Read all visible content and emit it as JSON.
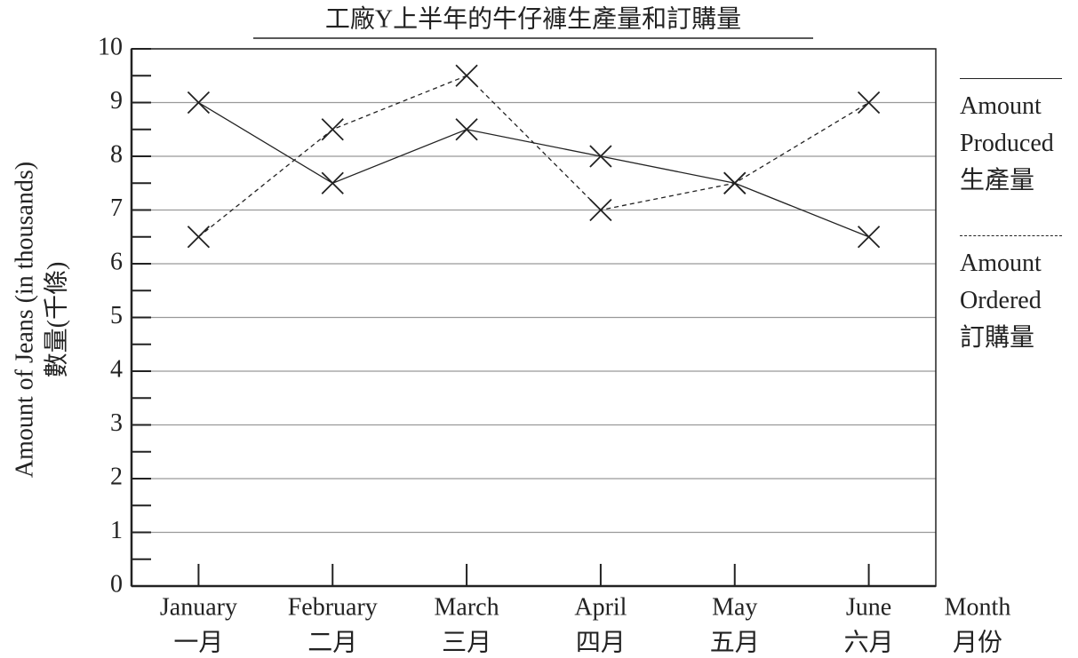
{
  "chart_data": {
    "type": "line",
    "title": "工廠Y上半年的牛仔褲生產量和訂購量",
    "x_label": "Month",
    "x_label_zh": "月份",
    "y_label": "Amount of Jeans (in thousands)",
    "y_label_zh": "數量(千條)",
    "categories": [
      "January",
      "February",
      "March",
      "April",
      "May",
      "June"
    ],
    "categories_zh": [
      "一月",
      "二月",
      "三月",
      "四月",
      "五月",
      "六月"
    ],
    "series": [
      {
        "name": "Amount Produced",
        "name_zh": "生產量",
        "color": "#222222",
        "dashed": false,
        "values": [
          9,
          7.5,
          8.5,
          8,
          7.5,
          6.5
        ]
      },
      {
        "name": "Amount Ordered",
        "name_zh": "訂購量",
        "color": "#222222",
        "dashed": true,
        "values": [
          6.5,
          8.5,
          9.5,
          7,
          7.5,
          9
        ]
      }
    ],
    "ylim": [
      0,
      10
    ],
    "yticks": [
      0,
      1,
      2,
      3,
      4,
      5,
      6,
      7,
      8,
      9,
      10
    ],
    "grid": true,
    "legend": "right"
  }
}
